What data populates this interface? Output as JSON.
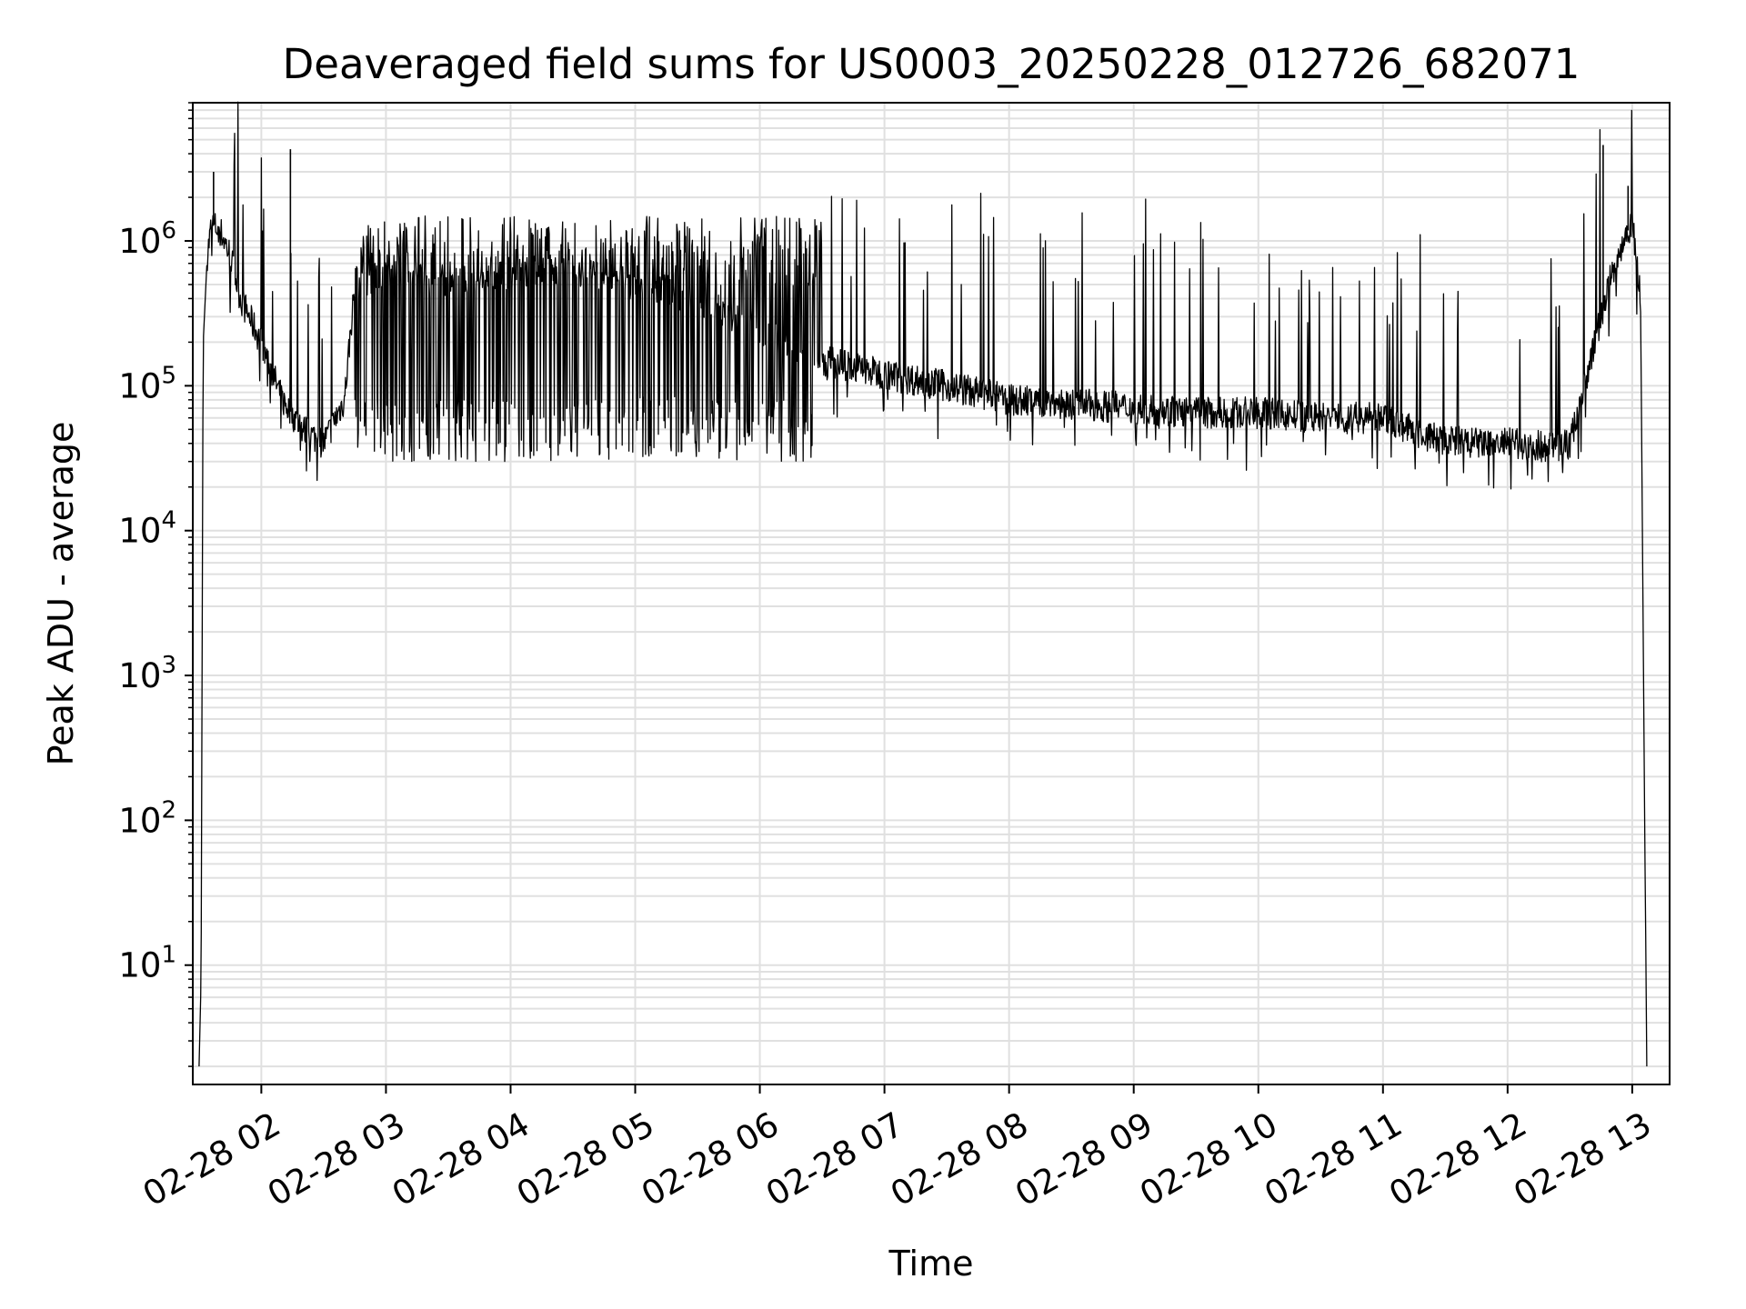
{
  "chart_data": {
    "type": "line",
    "title": "Deaveraged field sums for US0003_20250228_012726_682071",
    "xlabel": "Time",
    "ylabel": "Peak ADU - average",
    "yscale": "log",
    "ylim": [
      1.5,
      9000000
    ],
    "xlim": [
      "2025-02-28 01:27",
      "2025-02-28 13:18"
    ],
    "grid": true,
    "grid_color": "#e0e0e0",
    "line_color": "#000000",
    "x_tick_labels": [
      "02-28 02",
      "02-28 03",
      "02-28 04",
      "02-28 05",
      "02-28 06",
      "02-28 07",
      "02-28 08",
      "02-28 09",
      "02-28 10",
      "02-28 11",
      "02-28 12",
      "02-28 13"
    ],
    "x_tick_values": [
      "2025-02-28 02:00",
      "2025-02-28 03:00",
      "2025-02-28 04:00",
      "2025-02-28 05:00",
      "2025-02-28 06:00",
      "2025-02-28 07:00",
      "2025-02-28 08:00",
      "2025-02-28 09:00",
      "2025-02-28 10:00",
      "2025-02-28 11:00",
      "2025-02-28 12:00",
      "2025-02-28 13:00"
    ],
    "y_ticks": [
      {
        "value": 10,
        "base": "10",
        "exp": "1"
      },
      {
        "value": 100,
        "base": "10",
        "exp": "2"
      },
      {
        "value": 1000,
        "base": "10",
        "exp": "3"
      },
      {
        "value": 10000,
        "base": "10",
        "exp": "4"
      },
      {
        "value": 100000,
        "base": "10",
        "exp": "5"
      },
      {
        "value": 1000000,
        "base": "10",
        "exp": "6"
      }
    ],
    "series": [
      {
        "x": [
          "2025-02-28 01:30",
          "2025-02-28 01:31",
          "2025-02-28 01:32",
          "2025-02-28 01:34",
          "2025-02-28 01:36",
          "2025-02-28 01:40",
          "2025-02-28 01:45",
          "2025-02-28 01:50",
          "2025-02-28 02:00",
          "2025-02-28 02:10",
          "2025-02-28 02:20",
          "2025-02-28 02:30",
          "2025-02-28 02:40",
          "2025-02-28 02:45",
          "2025-02-28 03:00",
          "2025-02-28 03:30",
          "2025-02-28 04:00",
          "2025-02-28 04:30",
          "2025-02-28 05:00",
          "2025-02-28 05:30",
          "2025-02-28 06:00",
          "2025-02-28 06:30",
          "2025-02-28 07:00",
          "2025-02-28 07:30",
          "2025-02-28 08:00",
          "2025-02-28 08:30",
          "2025-02-28 09:00",
          "2025-02-28 09:30",
          "2025-02-28 10:00",
          "2025-02-28 10:30",
          "2025-02-28 11:00",
          "2025-02-28 11:20",
          "2025-02-28 11:40",
          "2025-02-28 12:00",
          "2025-02-28 12:20",
          "2025-02-28 12:30",
          "2025-02-28 12:40",
          "2025-02-28 12:50",
          "2025-02-28 13:00",
          "2025-02-28 13:04",
          "2025-02-28 13:06",
          "2025-02-28 13:07"
        ],
        "y": [
          2,
          8,
          200000,
          800000,
          1300000,
          1200000,
          800000,
          400000,
          200000,
          80000,
          50000,
          40000,
          80000,
          500000,
          600000,
          500000,
          600000,
          600000,
          500000,
          400000,
          250000,
          150000,
          120000,
          100000,
          80000,
          75000,
          70000,
          65000,
          65000,
          60000,
          60000,
          45000,
          40000,
          40000,
          38000,
          40000,
          150000,
          600000,
          1400000,
          400000,
          100,
          2
        ],
        "spikes": [
          {
            "x": "2025-02-28 01:37",
            "y": 3000000
          },
          {
            "x": "2025-02-28 02:14",
            "y": 4300000
          },
          {
            "x": "2025-02-28 12:46",
            "y": 4600000
          },
          {
            "x": "2025-02-28 12:58",
            "y": 2400000
          }
        ]
      }
    ]
  }
}
